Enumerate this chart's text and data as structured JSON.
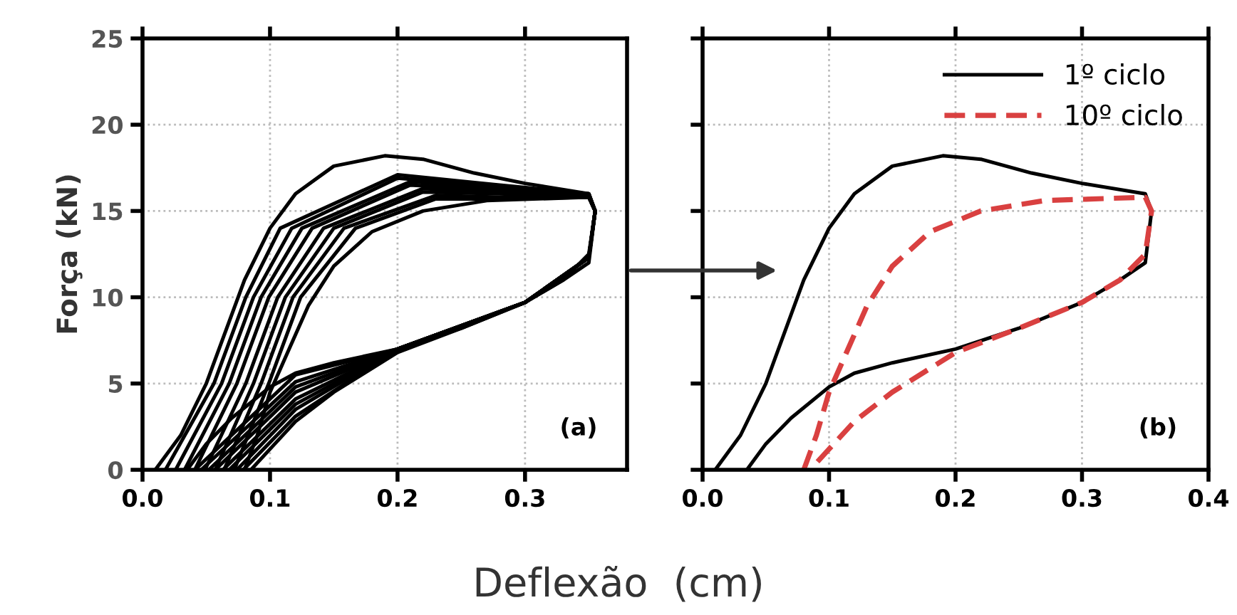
{
  "chart_data": [
    {
      "type": "line",
      "ylabel": "Força (kN)",
      "xlabel": "Deflexão  (cm)",
      "annotations": [
        "(a)"
      ],
      "xlim": [
        0,
        0.38
      ],
      "xticks": [
        {
          "value": 0,
          "label": "0.0"
        },
        0.1,
        0.2,
        0.3
      ],
      "ylim": [
        0,
        25
      ],
      "yticks": [
        0,
        5,
        10,
        15,
        20,
        25
      ],
      "grid": true,
      "line_style": "solid",
      "series": [
        {
          "color": "#000000",
          "x": [
            0.01,
            0.03,
            0.05,
            0.065,
            0.08,
            0.1,
            0.12,
            0.15,
            0.19,
            0.22,
            0.26,
            0.3,
            0.35,
            0.355,
            0.35,
            0.33,
            0.3,
            0.25,
            0.2,
            0.15,
            0.12,
            0.1,
            0.07,
            0.05,
            0.035
          ],
          "values": [
            0,
            2,
            5,
            8,
            11,
            14,
            16,
            17.6,
            18.2,
            18,
            17.2,
            16.6,
            16,
            15,
            12,
            11,
            9.7,
            8.2,
            7,
            6.2,
            5.6,
            4.8,
            3,
            1.5,
            0
          ]
        },
        {
          "color": "#000000",
          "x": [
            0.018,
            0.056,
            0.081,
            0.108,
            0.2,
            0.28,
            0.35,
            0.355,
            0.35,
            0.3,
            0.2,
            0.12,
            0.041
          ],
          "values": [
            0,
            5,
            10,
            14,
            17.1,
            16.5,
            16,
            15,
            12.3,
            9.7,
            7,
            5.5,
            0
          ]
        },
        {
          "color": "#000000",
          "x": [
            0.026,
            0.062,
            0.087,
            0.117,
            0.2,
            0.28,
            0.35,
            0.355,
            0.35,
            0.3,
            0.2,
            0.12,
            0.046
          ],
          "values": [
            0,
            5,
            10,
            14,
            16.9,
            16.4,
            16,
            15,
            12.3,
            9.7,
            7,
            5.1,
            0
          ]
        },
        {
          "color": "#000000",
          "x": [
            0.033,
            0.068,
            0.093,
            0.125,
            0.21,
            0.28,
            0.35,
            0.355,
            0.35,
            0.3,
            0.2,
            0.12,
            0.052
          ],
          "values": [
            0,
            5,
            10,
            14,
            16.7,
            16.3,
            15.9,
            15,
            12.3,
            9.7,
            7,
            4.8,
            0
          ]
        },
        {
          "color": "#000000",
          "x": [
            0.041,
            0.074,
            0.099,
            0.133,
            0.21,
            0.28,
            0.35,
            0.355,
            0.35,
            0.3,
            0.2,
            0.12,
            0.057
          ],
          "values": [
            0,
            5,
            10,
            14,
            16.5,
            16.2,
            15.9,
            15,
            12.3,
            9.7,
            7,
            4.5,
            0
          ]
        },
        {
          "color": "#000000",
          "x": [
            0.049,
            0.081,
            0.106,
            0.142,
            0.22,
            0.28,
            0.35,
            0.355,
            0.35,
            0.3,
            0.2,
            0.12,
            0.063
          ],
          "values": [
            0,
            5,
            10,
            14,
            16.3,
            16.1,
            15.9,
            15,
            12.3,
            9.7,
            7,
            4.1,
            0
          ]
        },
        {
          "color": "#000000",
          "x": [
            0.057,
            0.087,
            0.112,
            0.15,
            0.22,
            0.28,
            0.35,
            0.355,
            0.35,
            0.3,
            0.2,
            0.12,
            0.068
          ],
          "values": [
            0,
            5,
            10,
            14,
            16.1,
            16,
            15.8,
            15,
            12.3,
            9.7,
            7,
            3.8,
            0
          ]
        },
        {
          "color": "#000000",
          "x": [
            0.064,
            0.093,
            0.118,
            0.158,
            0.23,
            0.28,
            0.35,
            0.355,
            0.35,
            0.3,
            0.2,
            0.12,
            0.074
          ],
          "values": [
            0,
            5,
            10,
            14,
            15.9,
            15.8,
            15.8,
            15,
            12.3,
            9.7,
            7,
            3.5,
            0
          ]
        },
        {
          "color": "#000000",
          "x": [
            0.072,
            0.099,
            0.124,
            0.167,
            0.23,
            0.28,
            0.35,
            0.355,
            0.35,
            0.3,
            0.2,
            0.12,
            0.079
          ],
          "values": [
            0,
            5,
            10,
            14,
            15.7,
            15.7,
            15.8,
            15,
            12.3,
            9.7,
            7,
            3.1,
            0
          ]
        },
        {
          "color": "#000000",
          "x": [
            0.08,
            0.09,
            0.1,
            0.115,
            0.13,
            0.15,
            0.18,
            0.22,
            0.27,
            0.35,
            0.355,
            0.35,
            0.33,
            0.3,
            0.25,
            0.2,
            0.15,
            0.12,
            0.1,
            0.085
          ],
          "values": [
            0,
            2,
            4.5,
            7,
            9.5,
            11.8,
            13.8,
            15,
            15.6,
            15.8,
            15,
            12.5,
            11,
            9.7,
            8.2,
            6.8,
            4.5,
            2.8,
            1.2,
            0
          ]
        }
      ]
    },
    {
      "type": "line",
      "annotations": [
        "(b)"
      ],
      "xlim": [
        0,
        0.4
      ],
      "xticks": [
        {
          "value": 0,
          "label": "0.0"
        },
        0.1,
        0.2,
        0.3,
        0.4
      ],
      "ylim": [
        0,
        25
      ],
      "yticks": [
        0,
        5,
        10,
        15,
        20,
        25
      ],
      "tick_labels": "x",
      "grid": true,
      "legend": "top right",
      "series": [
        {
          "name": "1º ciclo",
          "color": "#000000",
          "line_style": "solid",
          "x": [
            0.01,
            0.03,
            0.05,
            0.065,
            0.08,
            0.1,
            0.12,
            0.15,
            0.19,
            0.22,
            0.26,
            0.3,
            0.35,
            0.355,
            0.35,
            0.33,
            0.3,
            0.25,
            0.2,
            0.15,
            0.12,
            0.1,
            0.07,
            0.05,
            0.035
          ],
          "values": [
            0,
            2,
            5,
            8,
            11,
            14,
            16,
            17.6,
            18.2,
            18,
            17.2,
            16.6,
            16,
            15,
            12,
            11,
            9.7,
            8.2,
            7,
            6.2,
            5.6,
            4.8,
            3,
            1.5,
            0
          ]
        },
        {
          "name": "10º ciclo",
          "color": "#d94040",
          "line_style": "dashed",
          "x": [
            0.08,
            0.09,
            0.1,
            0.115,
            0.13,
            0.15,
            0.18,
            0.22,
            0.27,
            0.35,
            0.355,
            0.35,
            0.33,
            0.3,
            0.25,
            0.2,
            0.15,
            0.12,
            0.1,
            0.085
          ],
          "values": [
            0,
            2,
            4.5,
            7,
            9.5,
            11.8,
            13.8,
            15,
            15.6,
            15.8,
            15,
            12.5,
            11,
            9.7,
            8.2,
            6.8,
            4.5,
            2.8,
            1.2,
            0
          ]
        }
      ]
    }
  ]
}
